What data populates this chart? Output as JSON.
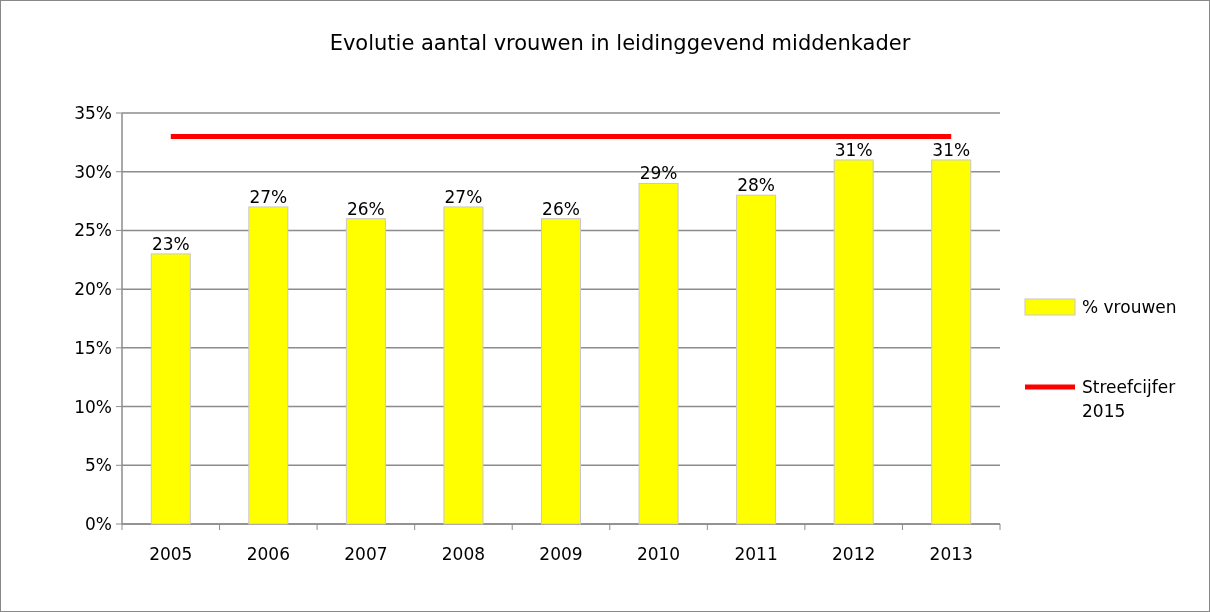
{
  "chart_data": {
    "type": "bar",
    "title": "Evolutie aantal vrouwen in leidinggevend middenkader",
    "categories": [
      "2005",
      "2006",
      "2007",
      "2008",
      "2009",
      "2010",
      "2011",
      "2012",
      "2013"
    ],
    "series": [
      {
        "name": "% vrouwen",
        "color": "#ffff00",
        "values": [
          23,
          27,
          26,
          27,
          26,
          29,
          28,
          31,
          31
        ],
        "value_labels": [
          "23%",
          "27%",
          "26%",
          "27%",
          "26%",
          "29%",
          "28%",
          "31%",
          "31%"
        ]
      },
      {
        "name": "Streefcijfer 2015",
        "type": "line",
        "color": "#ff0000",
        "values": [
          33,
          33,
          33,
          33,
          33,
          33,
          33,
          33,
          33
        ]
      }
    ],
    "ylim": [
      0,
      35
    ],
    "yticks": [
      {
        "value": 0,
        "label": "0%"
      },
      {
        "value": 5,
        "label": "5%"
      },
      {
        "value": 10,
        "label": "10%"
      },
      {
        "value": 15,
        "label": "15%"
      },
      {
        "value": 20,
        "label": "20%"
      },
      {
        "value": 25,
        "label": "25%"
      },
      {
        "value": 30,
        "label": "30%"
      },
      {
        "value": 35,
        "label": "35%"
      }
    ],
    "grid": "y",
    "legend": "right",
    "marker": "none",
    "line_style": "solid"
  }
}
